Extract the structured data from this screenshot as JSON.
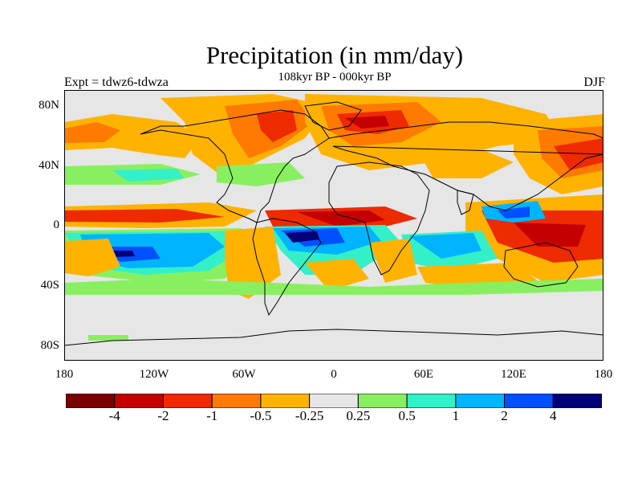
{
  "header": {
    "title": "Precipitation (in mm/day)",
    "subtitle": "108kyr BP - 000kyr BP",
    "experiment": "Expt = tdwz6-tdwza",
    "season": "DJF"
  },
  "axes": {
    "lat_ticks": [
      "80N",
      "40N",
      "0",
      "40S",
      "80S"
    ],
    "lon_ticks": [
      "180",
      "120W",
      "60W",
      "0",
      "60E",
      "120E",
      "180"
    ]
  },
  "colorbar": {
    "colors": [
      "#7a0000",
      "#c40000",
      "#ee2a00",
      "#ff7a00",
      "#ffb300",
      "#e6e6e6",
      "#88f060",
      "#33f0c8",
      "#00b4ff",
      "#0050ff",
      "#000078"
    ],
    "labels": [
      "-4",
      "-2",
      "-1",
      "-0.5",
      "-0.25",
      "0.25",
      "0.5",
      "1",
      "2",
      "4"
    ]
  },
  "colors": {
    "ocean_background": "#e6e6e6",
    "dry_strong": "#c40000",
    "dry": "#ee2a00",
    "dry_mid": "#ff7a00",
    "dry_weak": "#ffb300",
    "wet_weak": "#88f060",
    "wet": "#33f0c8",
    "wet_mid": "#00b4ff",
    "wet_strong": "#0050ff",
    "wet_max": "#000078",
    "coastline": "#000000"
  }
}
